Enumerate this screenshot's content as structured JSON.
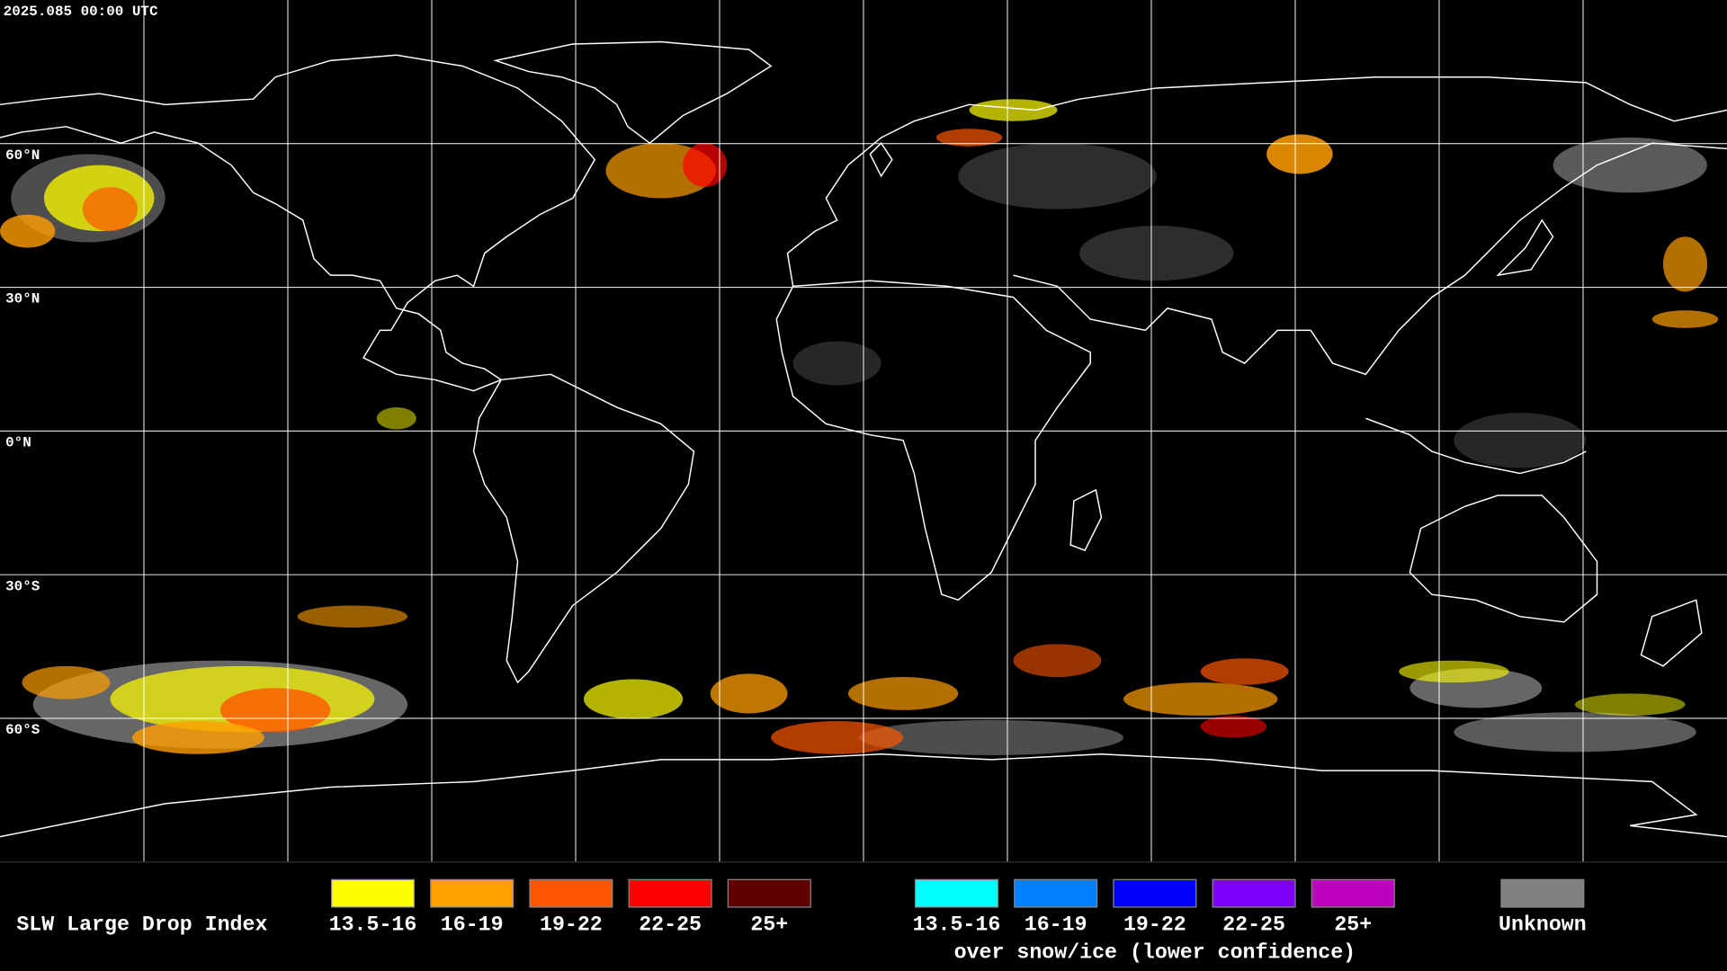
{
  "header": {
    "timestamp": "2025.085 00:00 UTC"
  },
  "map": {
    "latitude_labels": [
      "60°N",
      "30°N",
      "0°N",
      "30°S",
      "60°S"
    ]
  },
  "legend": {
    "title": "SLW Large Drop Index",
    "groups": [
      {
        "items": [
          {
            "label": "13.5-16",
            "color": "#ffff00"
          },
          {
            "label": "16-19",
            "color": "#ff9f00"
          },
          {
            "label": "19-22",
            "color": "#ff5500"
          },
          {
            "label": "22-25",
            "color": "#ff0000"
          },
          {
            "label": "25+",
            "color": "#600000"
          }
        ]
      },
      {
        "items": [
          {
            "label": "13.5-16",
            "color": "#00ffff"
          },
          {
            "label": "16-19",
            "color": "#0080ff"
          },
          {
            "label": "19-22",
            "color": "#0000ff"
          },
          {
            "label": "22-25",
            "color": "#8000ff"
          },
          {
            "label": "25+",
            "color": "#c000c0"
          }
        ],
        "note": "over snow/ice (lower confidence)"
      },
      {
        "items": [
          {
            "label": "Unknown",
            "color": "#808080"
          }
        ]
      }
    ]
  }
}
